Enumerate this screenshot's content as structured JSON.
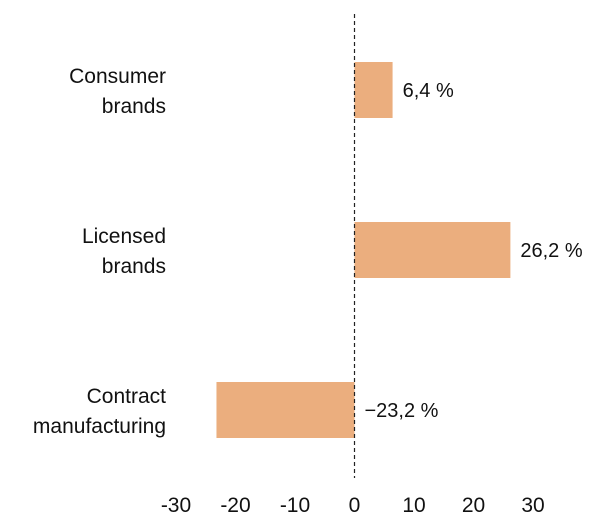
{
  "chart_data": {
    "type": "bar",
    "orientation": "horizontal",
    "categories": [
      [
        "Consumer",
        "brands"
      ],
      [
        "Licensed",
        "brands"
      ],
      [
        "Contract",
        "manufacturing"
      ]
    ],
    "values": [
      6.4,
      26.2,
      -23.2
    ],
    "value_labels": [
      "6,4 %",
      "26,2 %",
      "−23,2 %"
    ],
    "xlim": [
      -30,
      30
    ],
    "ticks": [
      -30,
      -20,
      -10,
      0,
      10,
      20,
      30
    ],
    "tick_labels": [
      "-30",
      "-20",
      "-10",
      "0",
      "10",
      "20",
      "30"
    ],
    "bar_color": "#ebae7e",
    "zero_line": "dashed",
    "grid": false,
    "title": "",
    "xlabel": "",
    "ylabel": ""
  }
}
